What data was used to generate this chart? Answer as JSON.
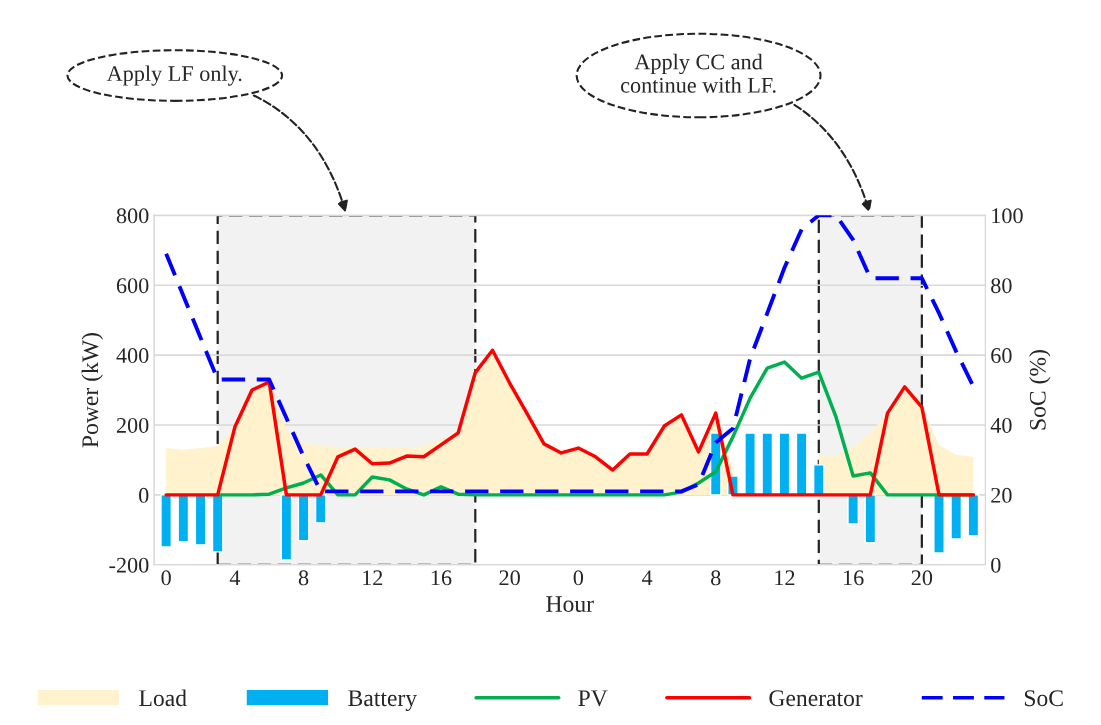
{
  "chart_data": {
    "type": "line",
    "xlabel": "Hour",
    "ylabel": "Power (kW)",
    "y2label": "SoC (%)",
    "categories": [
      "0",
      null,
      null,
      null,
      "4",
      null,
      null,
      null,
      "8",
      null,
      null,
      null,
      "12",
      null,
      null,
      null,
      "16",
      null,
      null,
      null,
      "20",
      null,
      null,
      null,
      "0",
      null,
      null,
      null,
      "4",
      null,
      null,
      null,
      "8",
      null,
      null,
      null,
      "12",
      null,
      null,
      null,
      "16",
      null,
      null,
      null,
      "20",
      null,
      null,
      null
    ],
    "ylim": [
      -200,
      800
    ],
    "yticks": [
      -200,
      0,
      200,
      400,
      600,
      800
    ],
    "y2lim": [
      0,
      100
    ],
    "y2ticks": [
      0,
      20,
      40,
      60,
      80,
      100
    ],
    "grid": "y",
    "legend": "bottom",
    "series": [
      {
        "name": "Load",
        "type": "area",
        "color": "#fff2cc",
        "values": [
          134,
          129,
          134,
          140,
          194,
          300,
          323,
          186,
          149,
          140,
          137,
          137,
          137,
          137,
          134,
          140,
          157,
          177,
          350,
          414,
          320,
          234,
          146,
          120,
          134,
          109,
          71,
          117,
          117,
          197,
          229,
          123,
          234,
          77,
          null,
          null,
          null,
          null,
          114,
          114,
          137,
          177,
          234,
          309,
          251,
          143,
          114,
          109
        ]
      },
      {
        "name": "Battery",
        "type": "bar",
        "color": "#00b0f0",
        "values": [
          -149,
          -134,
          -143,
          -163,
          null,
          null,
          null,
          -186,
          -131,
          -80,
          null,
          null,
          null,
          null,
          null,
          null,
          null,
          null,
          null,
          null,
          null,
          null,
          null,
          null,
          null,
          null,
          null,
          null,
          null,
          null,
          null,
          null,
          177,
          54,
          177,
          177,
          177,
          177,
          86,
          null,
          -83,
          -137,
          null,
          null,
          null,
          -166,
          -126,
          -117
        ]
      },
      {
        "name": "PV",
        "color": "#00b050",
        "values": [
          null,
          null,
          null,
          0,
          0,
          0,
          2,
          20,
          34,
          57,
          0,
          0,
          51,
          43,
          17,
          0,
          23,
          2,
          0,
          0,
          0,
          0,
          0,
          0,
          0,
          0,
          0,
          0,
          0,
          0,
          8,
          34,
          66,
          166,
          277,
          363,
          380,
          334,
          351,
          223,
          54,
          63,
          0,
          0,
          0,
          0,
          0,
          0
        ]
      },
      {
        "name": "Generator",
        "color": "#ff0000",
        "values": [
          0,
          0,
          0,
          0,
          194,
          300,
          323,
          0,
          0,
          0,
          109,
          131,
          89,
          91,
          111,
          109,
          143,
          177,
          350,
          414,
          320,
          234,
          146,
          120,
          134,
          109,
          71,
          117,
          117,
          197,
          229,
          123,
          234,
          0,
          0,
          0,
          0,
          0,
          0,
          0,
          0,
          0,
          234,
          309,
          251,
          0,
          0,
          0
        ]
      },
      {
        "name": "SoC",
        "type": "line",
        "axis": "y2",
        "line_style": "dashed",
        "color": "#0000ff",
        "values": [
          89,
          77,
          65,
          53,
          53,
          53,
          53,
          42,
          31,
          21,
          21,
          21,
          21,
          21,
          21,
          21,
          21,
          21,
          21,
          21,
          21,
          21,
          21,
          21,
          21,
          21,
          21,
          21,
          21,
          21,
          21,
          23,
          35,
          39,
          59,
          72,
          85,
          96,
          100,
          100,
          93,
          82,
          82,
          82,
          82,
          72,
          61,
          51
        ]
      }
    ],
    "annotations": [
      "Apply LF only.",
      "Apply CC and\ncontinue with LF."
    ]
  }
}
